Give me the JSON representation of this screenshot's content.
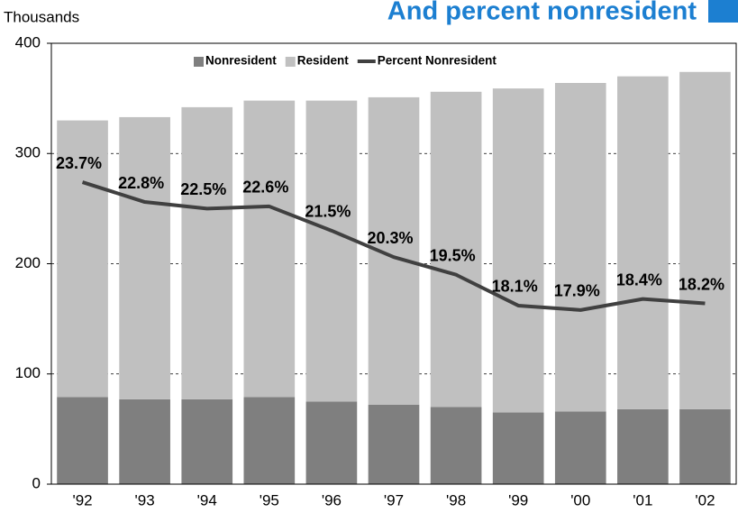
{
  "chart_data": {
    "type": "bar",
    "title": "And percent nonresident",
    "ylabel": "Thousands",
    "categories": [
      "'92",
      "'93",
      "'94",
      "'95",
      "'96",
      "'97",
      "'98",
      "'99",
      "'00",
      "'01",
      "'02"
    ],
    "series": [
      {
        "name": "Nonresident",
        "color": "#7f7f7f",
        "values": [
          79,
          77,
          77,
          79,
          75,
          72,
          70,
          65,
          66,
          68,
          68
        ]
      },
      {
        "name": "Resident",
        "color": "#c0c0c0",
        "values": [
          251,
          256,
          265,
          269,
          273,
          279,
          286,
          294,
          298,
          302,
          306
        ]
      },
      {
        "name": "Percent Nonresident",
        "type": "line",
        "axis": "y2",
        "color": "#404040",
        "values": [
          23.7,
          22.8,
          22.5,
          22.6,
          21.5,
          20.3,
          19.5,
          18.1,
          17.9,
          18.4,
          18.2
        ],
        "value_labels": [
          "23.7%",
          "22.8%",
          "22.5%",
          "22.6%",
          "21.5%",
          "20.3%",
          "19.5%",
          "18.1%",
          "17.9%",
          "18.4%",
          "18.2%"
        ]
      }
    ],
    "stacked": true,
    "ylim": [
      0,
      400
    ],
    "yticks": [
      0,
      100,
      200,
      300,
      400
    ],
    "y2lim": [
      10,
      30
    ],
    "grid": true,
    "legend": "top"
  }
}
